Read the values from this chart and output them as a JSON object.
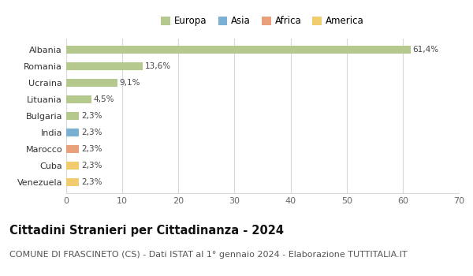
{
  "countries": [
    "Albania",
    "Romania",
    "Ucraina",
    "Lituania",
    "Bulgaria",
    "India",
    "Marocco",
    "Cuba",
    "Venezuela"
  ],
  "values": [
    61.4,
    13.6,
    9.1,
    4.5,
    2.3,
    2.3,
    2.3,
    2.3,
    2.3
  ],
  "labels": [
    "61,4%",
    "13,6%",
    "9,1%",
    "4,5%",
    "2,3%",
    "2,3%",
    "2,3%",
    "2,3%",
    "2,3%"
  ],
  "continents": [
    "Europa",
    "Europa",
    "Europa",
    "Europa",
    "Europa",
    "Asia",
    "Africa",
    "America",
    "America"
  ],
  "bar_colors": {
    "Europa": "#b5c98e",
    "Asia": "#7bafd4",
    "Africa": "#e8a07a",
    "America": "#f0cc6e"
  },
  "xlim": [
    0,
    70
  ],
  "xticks": [
    0,
    10,
    20,
    30,
    40,
    50,
    60,
    70
  ],
  "background_color": "#ffffff",
  "grid_color": "#d8d8d8",
  "title": "Cittadini Stranieri per Cittadinanza - 2024",
  "subtitle": "COMUNE DI FRASCINETO (CS) - Dati ISTAT al 1° gennaio 2024 - Elaborazione TUTTITALIA.IT",
  "title_fontsize": 10.5,
  "subtitle_fontsize": 8,
  "bar_label_fontsize": 7.5,
  "ytick_fontsize": 8,
  "xtick_fontsize": 8,
  "legend_fontsize": 8.5,
  "bar_height": 0.5,
  "legend_items": [
    "Europa",
    "Asia",
    "Africa",
    "America"
  ]
}
